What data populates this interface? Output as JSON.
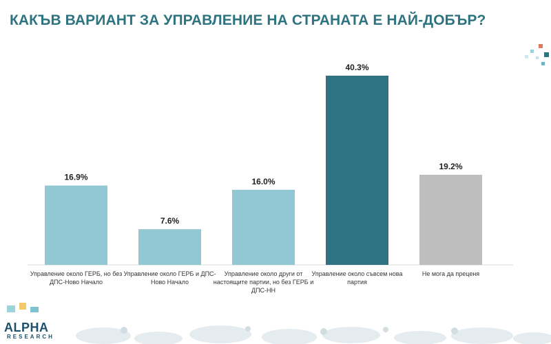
{
  "title": "КАКЪВ ВАРИАНТ ЗА УПРАВЛЕНИЕ НА СТРАНАТА Е НАЙ-ДОБЪР?",
  "logo": {
    "top": "ALPHA",
    "bottom": "RESEARCH"
  },
  "chart_data": {
    "type": "bar",
    "categories": [
      [
        "Управление около ГЕРБ, но без",
        "ДПС-Ново Начало"
      ],
      [
        "Управление около ГЕРБ и ДПС-",
        "Ново Начало"
      ],
      [
        "Управление около други от",
        "настоящите партии, но без ГЕРБ и",
        "ДПС-НН"
      ],
      [
        "Управление около съвсем нова",
        "партия"
      ],
      [
        "Не мога да преценя"
      ]
    ],
    "values": [
      16.9,
      7.6,
      16.0,
      40.3,
      19.2
    ],
    "value_labels": [
      "16.9%",
      "7.6%",
      "16.0%",
      "40.3%",
      "19.2%"
    ],
    "colors": [
      "#92c8d3",
      "#92c8d3",
      "#92c8d3",
      "#2f7383",
      "#bebebe"
    ],
    "ylim": [
      0,
      45
    ],
    "grid": false,
    "legend": "none"
  }
}
